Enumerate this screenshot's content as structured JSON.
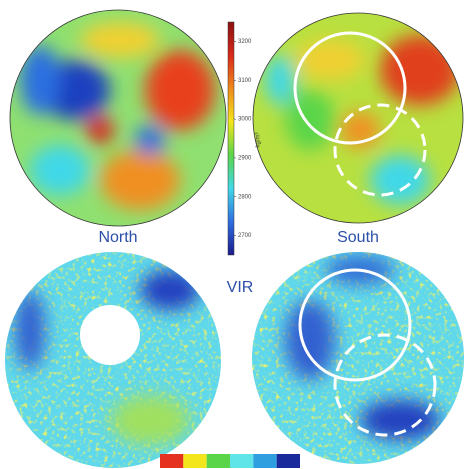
{
  "labels": {
    "north": "North",
    "south": "South",
    "instrument": "VIR"
  },
  "colorbar": {
    "ylim": [
      2650,
      3250
    ],
    "yticks": [
      2700,
      2800,
      2900,
      3000,
      3100,
      3200
    ],
    "unit": "kg/m³",
    "colors": [
      "#1a1a8c",
      "#2f6fe0",
      "#40d8e8",
      "#5ad54a",
      "#f4e61c",
      "#f08a1a",
      "#d8281a",
      "#8c1010"
    ]
  },
  "bottom_colorbar": {
    "colors": [
      "#e53120",
      "#f4e61c",
      "#5ad54a",
      "#5fe4e8",
      "#2f9fe0",
      "#1a2a9a"
    ]
  }
}
